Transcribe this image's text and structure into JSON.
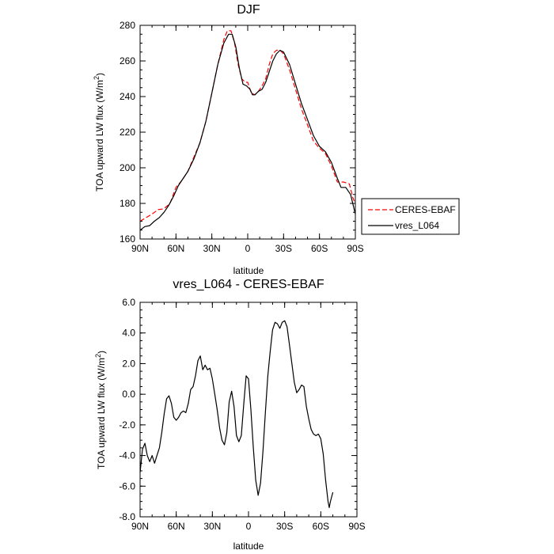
{
  "chart_data": [
    {
      "type": "line",
      "title": "DJF",
      "xlabel": "latitude",
      "ylabel": "TOA upward LW flux (W/m²)",
      "ylabel_main": "TOA upward LW flux (W/m",
      "ylabel_sup": "2",
      "ylabel_tail": ")",
      "xlim": [
        90,
        -90
      ],
      "ylim": [
        160,
        280
      ],
      "x_ticks": [
        90,
        60,
        30,
        0,
        -30,
        -60,
        -90
      ],
      "x_tick_labels": [
        "90N",
        "60N",
        "30N",
        "0",
        "30S",
        "60S",
        "90S"
      ],
      "y_ticks": [
        160,
        180,
        200,
        220,
        240,
        260,
        280
      ],
      "y_tick_labels": [
        "160",
        "180",
        "200",
        "220",
        "240",
        "260",
        "280"
      ],
      "legend_position": "right-bottom-outside",
      "series": [
        {
          "name": "CERES-EBAF",
          "color": "#ff0000",
          "dash": "dashed",
          "points": [
            [
              90,
              170
            ],
            [
              85,
              172
            ],
            [
              80,
              174
            ],
            [
              75,
              176.5
            ],
            [
              70,
              177
            ],
            [
              65,
              180
            ],
            [
              60,
              189
            ],
            [
              55,
              193
            ],
            [
              50,
              198
            ],
            [
              45,
              206
            ],
            [
              40,
              214
            ],
            [
              35,
              226
            ],
            [
              30,
              242
            ],
            [
              25,
              258
            ],
            [
              20,
              272
            ],
            [
              17,
              277
            ],
            [
              14,
              277
            ],
            [
              11,
              270
            ],
            [
              8,
              258
            ],
            [
              5,
              250
            ],
            [
              2,
              248
            ],
            [
              0,
              248
            ],
            [
              -3,
              242
            ],
            [
              -6,
              241
            ],
            [
              -9,
              243
            ],
            [
              -12,
              246
            ],
            [
              -15,
              250
            ],
            [
              -18,
              258
            ],
            [
              -21,
              264
            ],
            [
              -24,
              266
            ],
            [
              -27,
              266
            ],
            [
              -30,
              264
            ],
            [
              -35,
              255
            ],
            [
              -40,
              244
            ],
            [
              -45,
              233
            ],
            [
              -50,
              224
            ],
            [
              -55,
              215
            ],
            [
              -60,
              211
            ],
            [
              -65,
              208
            ],
            [
              -70,
              201
            ],
            [
              -75,
              192
            ],
            [
              -80,
              192
            ],
            [
              -85,
              191
            ],
            [
              -88,
              183
            ],
            [
              -90,
              180
            ]
          ]
        },
        {
          "name": "vres_L064",
          "color": "#000000",
          "dash": "solid",
          "points": [
            [
              90,
              165
            ],
            [
              86,
              167
            ],
            [
              82,
              167.5
            ],
            [
              78,
              170
            ],
            [
              74,
              172
            ],
            [
              70,
              175
            ],
            [
              66,
              179
            ],
            [
              62,
              184
            ],
            [
              58,
              190
            ],
            [
              54,
              194
            ],
            [
              50,
              198
            ],
            [
              45,
              205
            ],
            [
              40,
              214
            ],
            [
              35,
              226
            ],
            [
              30,
              242
            ],
            [
              25,
              258
            ],
            [
              20,
              270
            ],
            [
              16,
              275
            ],
            [
              13,
              275
            ],
            [
              10,
              268
            ],
            [
              7,
              256
            ],
            [
              4,
              247
            ],
            [
              1,
              246
            ],
            [
              -2,
              244
            ],
            [
              -4,
              241
            ],
            [
              -6,
              241
            ],
            [
              -9,
              243
            ],
            [
              -12,
              244
            ],
            [
              -15,
              248
            ],
            [
              -18,
              254
            ],
            [
              -21,
              260
            ],
            [
              -24,
              264
            ],
            [
              -27,
              266
            ],
            [
              -30,
              265
            ],
            [
              -35,
              258
            ],
            [
              -40,
              247
            ],
            [
              -45,
              236
            ],
            [
              -50,
              227
            ],
            [
              -55,
              218
            ],
            [
              -60,
              212
            ],
            [
              -65,
              209
            ],
            [
              -70,
              203
            ],
            [
              -75,
              194
            ],
            [
              -78,
              189
            ],
            [
              -82,
              189
            ],
            [
              -86,
              185
            ],
            [
              -90,
              174
            ]
          ]
        }
      ]
    },
    {
      "type": "line",
      "title": "vres_L064 - CERES-EBAF",
      "xlabel": "latitude",
      "ylabel": "TOA upward LW flux (W/m²)",
      "ylabel_main": "TOA upward LW flux (W/m",
      "ylabel_sup": "2",
      "ylabel_tail": ")",
      "xlim": [
        90,
        -90
      ],
      "ylim": [
        -8,
        6
      ],
      "x_ticks": [
        90,
        60,
        30,
        0,
        -30,
        -60,
        -90
      ],
      "x_tick_labels": [
        "90N",
        "60N",
        "30N",
        "0",
        "30S",
        "60S",
        "90S"
      ],
      "y_ticks": [
        -8,
        -6,
        -4,
        -2,
        0,
        2,
        4,
        6
      ],
      "y_tick_labels": [
        "-8.0",
        "-6.0",
        "-4.0",
        "-2.0",
        "0.0",
        "2.0",
        "4.0",
        "6.0"
      ],
      "series": [
        {
          "color": "#000000",
          "dash": "solid",
          "points": [
            [
              90,
              -5.1
            ],
            [
              88,
              -3.6
            ],
            [
              86,
              -3.2
            ],
            [
              84,
              -4.0
            ],
            [
              82,
              -4.4
            ],
            [
              80,
              -4.0
            ],
            [
              78,
              -4.5
            ],
            [
              76,
              -4.0
            ],
            [
              74,
              -3.5
            ],
            [
              72,
              -2.5
            ],
            [
              70,
              -1.3
            ],
            [
              68,
              -0.3
            ],
            [
              66,
              -0.1
            ],
            [
              64,
              -0.6
            ],
            [
              62,
              -1.5
            ],
            [
              60,
              -1.7
            ],
            [
              58,
              -1.5
            ],
            [
              56,
              -1.2
            ],
            [
              54,
              -1.1
            ],
            [
              52,
              -1.2
            ],
            [
              50,
              -0.6
            ],
            [
              48,
              0.3
            ],
            [
              46,
              0.5
            ],
            [
              44,
              1.2
            ],
            [
              42,
              2.2
            ],
            [
              40,
              2.5
            ],
            [
              38,
              1.6
            ],
            [
              36,
              1.9
            ],
            [
              34,
              1.6
            ],
            [
              32,
              1.7
            ],
            [
              30,
              1.0
            ],
            [
              28,
              0.0
            ],
            [
              26,
              -1.0
            ],
            [
              24,
              -2.2
            ],
            [
              22,
              -3.0
            ],
            [
              20,
              -3.3
            ],
            [
              18,
              -2.5
            ],
            [
              16,
              -0.5
            ],
            [
              14,
              0.2
            ],
            [
              12,
              -0.8
            ],
            [
              10,
              -2.7
            ],
            [
              8,
              -3.1
            ],
            [
              6,
              -2.7
            ],
            [
              4,
              -0.7
            ],
            [
              2,
              1.2
            ],
            [
              0,
              1.0
            ],
            [
              -2,
              -1.0
            ],
            [
              -4,
              -3.5
            ],
            [
              -6,
              -5.6
            ],
            [
              -8,
              -6.6
            ],
            [
              -10,
              -5.8
            ],
            [
              -12,
              -3.7
            ],
            [
              -14,
              -1.2
            ],
            [
              -16,
              1.2
            ],
            [
              -18,
              2.8
            ],
            [
              -20,
              4.2
            ],
            [
              -22,
              4.7
            ],
            [
              -24,
              4.6
            ],
            [
              -26,
              4.3
            ],
            [
              -28,
              4.7
            ],
            [
              -30,
              4.8
            ],
            [
              -32,
              4.4
            ],
            [
              -34,
              3.2
            ],
            [
              -36,
              2.0
            ],
            [
              -38,
              0.8
            ],
            [
              -40,
              0.1
            ],
            [
              -42,
              0.3
            ],
            [
              -44,
              0.6
            ],
            [
              -46,
              0.5
            ],
            [
              -48,
              -0.8
            ],
            [
              -50,
              -1.6
            ],
            [
              -52,
              -2.3
            ],
            [
              -54,
              -2.6
            ],
            [
              -56,
              -2.7
            ],
            [
              -58,
              -2.6
            ],
            [
              -60,
              -2.9
            ],
            [
              -62,
              -3.9
            ],
            [
              -64,
              -5.6
            ],
            [
              -66,
              -7.0
            ],
            [
              -67,
              -7.4
            ],
            [
              -68,
              -7.0
            ],
            [
              -70,
              -6.4
            ]
          ]
        }
      ]
    }
  ]
}
